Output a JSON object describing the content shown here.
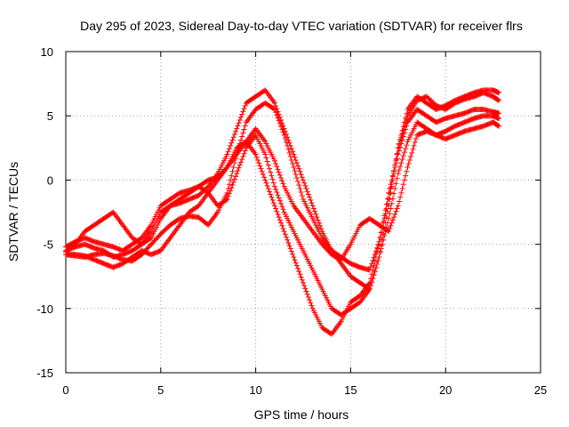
{
  "chart_data": {
    "type": "scatter",
    "title": "Day 295 of 2023, Sidereal Day-to-day VTEC variation (SDTVAR) for receiver flrs",
    "xlabel": "GPS time / hours",
    "ylabel": "SDTVAR / TECUs",
    "xlim": [
      0,
      25
    ],
    "ylim": [
      -15,
      10
    ],
    "xticks": [
      0,
      5,
      10,
      15,
      20,
      25
    ],
    "yticks": [
      -15,
      -10,
      -5,
      0,
      5,
      10
    ],
    "grid": true,
    "marker": "+",
    "color": "#ff0000",
    "series": [
      {
        "x": [
          0.0,
          0.5,
          1.0,
          1.5,
          2.0,
          2.5,
          3.0,
          3.5,
          4.0,
          4.5,
          5.0,
          5.5,
          6.0,
          6.5,
          7.0,
          7.5,
          8.0,
          8.5,
          9.0,
          9.5,
          10.0,
          10.5,
          11.0,
          11.5,
          12.0,
          12.5,
          13.0,
          13.5,
          14.0,
          14.5,
          15.0,
          15.5,
          16.0,
          16.5,
          17.0,
          17.5,
          18.0,
          18.5,
          19.0,
          19.5,
          20.0,
          20.5,
          21.0,
          21.5,
          22.0,
          22.5,
          22.8
        ],
        "y": [
          -5.8,
          -5.9,
          -6.0,
          -5.8,
          -5.7,
          -5.9,
          -6.2,
          -6.3,
          -5.8,
          -5.0,
          -4.2,
          -3.5,
          -3.0,
          -2.8,
          -2.9,
          -3.5,
          -2.5,
          -1.0,
          2.0,
          4.5,
          5.5,
          6.0,
          5.5,
          3.5,
          1.0,
          -1.5,
          -3.0,
          -4.5,
          -5.5,
          -6.0,
          -6.5,
          -6.8,
          -7.0,
          -4.8,
          -1.5,
          2.5,
          5.5,
          6.5,
          6.0,
          5.5,
          5.8,
          6.2,
          6.5,
          6.8,
          7.0,
          7.0,
          6.8
        ]
      },
      {
        "x": [
          0.0,
          0.5,
          1.0,
          1.5,
          2.0,
          2.5,
          3.0,
          3.5,
          4.0,
          4.5,
          5.0,
          5.5,
          6.0,
          6.5,
          7.0,
          7.5,
          8.0,
          8.5,
          9.0,
          9.5,
          10.0,
          10.5,
          11.0,
          11.5,
          12.0,
          12.5,
          13.0,
          13.5,
          14.0,
          14.5,
          15.0,
          15.5,
          16.0,
          16.5,
          17.0,
          17.5,
          18.0,
          18.5,
          19.0,
          19.5,
          20.0,
          20.5,
          21.0,
          21.5,
          22.0,
          22.5,
          22.8
        ],
        "y": [
          -5.5,
          -5.2,
          -5.0,
          -5.3,
          -5.5,
          -6.0,
          -5.8,
          -5.5,
          -5.0,
          -4.0,
          -2.5,
          -2.0,
          -1.8,
          -1.5,
          -1.2,
          -0.5,
          0.5,
          2.0,
          4.0,
          6.0,
          6.5,
          7.0,
          6.0,
          4.0,
          2.0,
          0.0,
          -2.0,
          -4.0,
          -5.5,
          -6.5,
          -7.5,
          -8.0,
          -8.5,
          -6.0,
          -2.0,
          2.5,
          5.0,
          6.2,
          6.5,
          5.8,
          5.5,
          6.0,
          6.3,
          6.5,
          6.8,
          6.5,
          6.2
        ]
      },
      {
        "x": [
          0.0,
          0.5,
          1.0,
          1.5,
          2.0,
          2.5,
          3.0,
          3.5,
          4.0,
          4.5,
          5.0,
          5.5,
          6.0,
          6.5,
          7.0,
          7.5,
          8.0,
          8.5,
          9.0,
          9.5,
          10.0,
          10.5,
          11.0,
          11.5,
          12.0,
          12.5,
          13.0,
          13.5,
          14.0,
          14.5,
          15.0,
          15.5,
          16.0,
          16.5,
          17.0,
          17.5,
          18.0,
          18.5,
          19.0,
          19.5,
          20.0,
          20.5,
          21.0,
          21.5,
          22.0,
          22.5,
          22.8
        ],
        "y": [
          -5.2,
          -4.8,
          -4.5,
          -4.8,
          -5.0,
          -5.2,
          -5.5,
          -5.0,
          -4.5,
          -3.5,
          -2.0,
          -1.5,
          -1.0,
          -0.8,
          -0.5,
          0.0,
          0.2,
          1.0,
          2.5,
          3.0,
          2.0,
          0.0,
          -2.0,
          -4.0,
          -6.0,
          -8.0,
          -10.0,
          -11.5,
          -12.0,
          -11.0,
          -9.5,
          -9.0,
          -8.0,
          -5.0,
          -1.0,
          2.0,
          4.5,
          5.5,
          5.0,
          4.5,
          4.8,
          5.0,
          5.2,
          5.5,
          5.5,
          5.3,
          5.2
        ]
      },
      {
        "x": [
          0.0,
          0.5,
          1.0,
          1.5,
          2.0,
          2.5,
          3.0,
          3.5,
          4.0,
          4.5,
          5.0,
          5.5,
          6.0,
          6.5,
          7.0,
          7.5,
          8.0,
          8.5,
          9.0,
          9.5,
          10.0,
          10.5,
          11.0,
          11.5,
          12.0,
          12.5,
          13.0,
          13.5,
          14.0,
          14.5,
          15.0,
          15.5,
          16.0,
          16.5,
          17.0,
          17.5,
          18.0,
          18.5,
          19.0,
          19.5,
          20.0,
          20.5,
          21.0,
          21.5,
          22.0,
          22.5,
          22.8
        ],
        "y": [
          -5.6,
          -5.0,
          -4.0,
          -3.5,
          -3.0,
          -2.5,
          -3.5,
          -4.5,
          -5.0,
          -4.5,
          -3.0,
          -2.0,
          -1.5,
          -1.0,
          -0.5,
          -1.0,
          -2.0,
          -1.5,
          0.5,
          2.5,
          3.5,
          2.0,
          -0.5,
          -2.5,
          -4.0,
          -5.5,
          -7.0,
          -8.5,
          -10.0,
          -10.5,
          -10.0,
          -9.5,
          -8.5,
          -6.0,
          -3.0,
          0.5,
          3.0,
          4.5,
          4.0,
          3.5,
          3.8,
          4.2,
          4.5,
          4.8,
          5.0,
          5.0,
          4.8
        ]
      },
      {
        "x": [
          0.0,
          0.5,
          1.0,
          1.5,
          2.0,
          2.5,
          3.0,
          3.5,
          4.0,
          4.5,
          5.0,
          5.5,
          6.0,
          6.5,
          7.0,
          7.5,
          8.0,
          8.5,
          9.0,
          9.5,
          10.0,
          10.5,
          11.0,
          11.5,
          12.0,
          12.5,
          13.0,
          13.5,
          14.0,
          14.5,
          15.0,
          15.5,
          16.0,
          16.5,
          17.0,
          17.5,
          18.0,
          18.5,
          19.0,
          19.5,
          20.0,
          20.5,
          21.0,
          21.5,
          22.0,
          22.5,
          22.8
        ],
        "y": [
          -5.8,
          -5.8,
          -5.9,
          -6.2,
          -6.5,
          -6.8,
          -6.5,
          -6.0,
          -5.5,
          -5.8,
          -5.5,
          -4.5,
          -3.5,
          -2.5,
          -2.0,
          -1.0,
          0.0,
          1.0,
          2.0,
          3.0,
          4.0,
          3.0,
          1.5,
          -0.5,
          -2.0,
          -3.0,
          -4.0,
          -5.0,
          -5.8,
          -6.2,
          -5.0,
          -3.5,
          -3.0,
          -3.5,
          -4.0,
          -2.0,
          1.0,
          3.5,
          3.8,
          3.5,
          3.2,
          3.5,
          3.8,
          4.0,
          4.2,
          4.5,
          4.2
        ]
      }
    ]
  }
}
